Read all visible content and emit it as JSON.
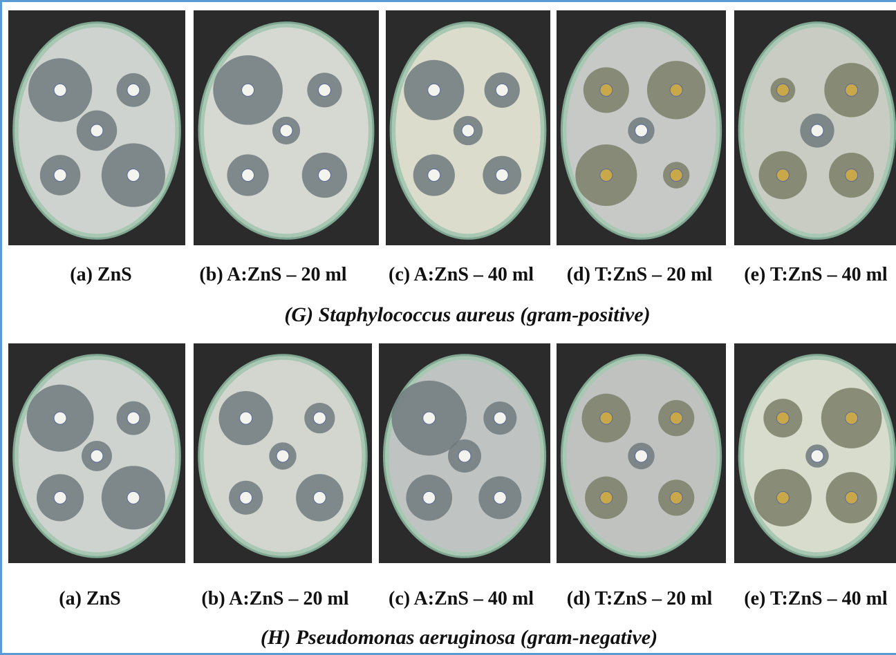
{
  "rows": [
    {
      "panels": [
        {
          "label": "(a) ZnS"
        },
        {
          "label": "(b) A:ZnS – 20 ml"
        },
        {
          "label": "(c) A:ZnS – 40 ml"
        },
        {
          "label": "(d) T:ZnS – 20 ml"
        },
        {
          "label": "(e) T:ZnS – 40 ml"
        }
      ],
      "caption": "(G) Staphylococcus aureus (gram-positive)"
    },
    {
      "panels": [
        {
          "label": "(a) ZnS"
        },
        {
          "label": "(b) A:ZnS – 20 ml"
        },
        {
          "label": "(c) A:ZnS – 40 ml"
        },
        {
          "label": "(d) T:ZnS – 20 ml"
        },
        {
          "label": "(e) T:ZnS – 40 ml"
        }
      ],
      "caption": "(H) Pseudomonas aeruginosa (gram-negative)"
    }
  ]
}
